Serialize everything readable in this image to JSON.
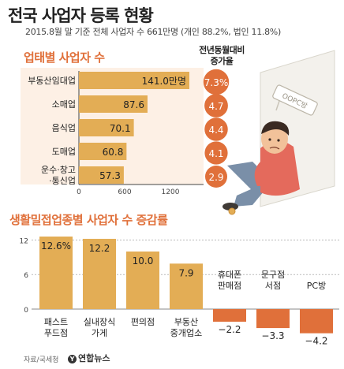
{
  "title": "전국 사업자 등록 현황",
  "subtitle": "2015.8월 말 기준 전체 사업자 수 661만명 (개인 88.2%, 법인 11.8%)",
  "section1_title": "업태별 사업자 수",
  "yoy_header_line1": "전년동월대비",
  "yoy_header_line2": "증가율",
  "section2_title": "생활밀접업종별 사업자 수 증감률",
  "source": "자료/국세청",
  "logo_text": "연합뉴스",
  "colors": {
    "bar_gold": "#e3ad55",
    "bar_gold_dark": "#c98f3a",
    "bar_orange": "#e0703a",
    "circle_orange": "#e0703a",
    "bg_peach": "#fdf0e5"
  },
  "illustration": "worried-man-sitting-against-wall-icon",
  "chart_data": [
    {
      "type": "bar",
      "orientation": "horizontal",
      "title": "업태별 사업자 수",
      "categories": [
        "부동산임대업",
        "소매업",
        "음식업",
        "도매업",
        "운수·창고·통신업"
      ],
      "values": [
        141.0,
        87.6,
        70.1,
        60.8,
        57.3
      ],
      "value_labels": [
        "141.0만명",
        "87.6",
        "70.1",
        "60.8",
        "57.3"
      ],
      "ticks": [
        "0",
        "600",
        "1200"
      ],
      "xlim": [
        0,
        1400
      ],
      "series_extra": {
        "name": "전년동월대비 증가율",
        "values": [
          7.3,
          4.7,
          4.4,
          4.1,
          2.9
        ],
        "labels": [
          "7.3%",
          "4.7",
          "4.4",
          "4.1",
          "2.9"
        ]
      }
    },
    {
      "type": "bar",
      "orientation": "vertical",
      "title": "생활밀접업종별 사업자 수 증감률",
      "categories": [
        "패스트\n푸드점",
        "실내장식\n가게",
        "편의점",
        "부동산\n중개업소",
        "휴대폰\n판매점",
        "문구점\n서점",
        "PC방"
      ],
      "values": [
        12.6,
        12.2,
        10.0,
        7.9,
        -2.2,
        -3.3,
        -4.2
      ],
      "value_labels": [
        "12.6%",
        "12.2",
        "10.0",
        "7.9",
        "−2.2",
        "−3.3",
        "−4.2"
      ],
      "ticks": [
        "12",
        "6",
        "0"
      ],
      "ylim": [
        -5,
        13
      ]
    }
  ]
}
